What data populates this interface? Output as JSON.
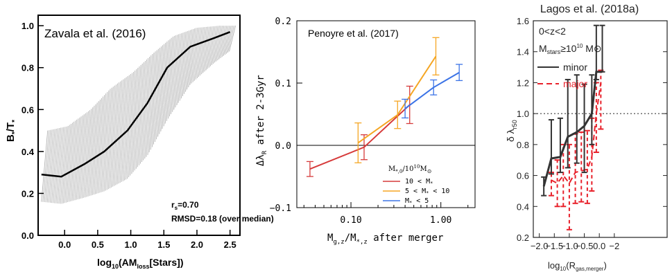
{
  "chart_data": [
    {
      "type": "line",
      "annotation": "Zavala et al. (2016)",
      "xlabel_main": "log",
      "xlabel_sub": "10",
      "xlabel_rest": "(AM",
      "xlabel_sub2": "loss",
      "xlabel_end": "[Stars])",
      "ylabel_main": "B",
      "ylabel_sub": "*",
      "ylabel_rest": "/T",
      "ylabel_sub2": "*",
      "stats": [
        "r",
        "=0.70",
        "RMSD=0.18 (over median)"
      ],
      "stats_sub": "s",
      "xlim": [
        -0.4,
        2.65
      ],
      "ylim": [
        0.0,
        1.05
      ],
      "xticks": [
        "0.0",
        "0.5",
        "1.0",
        "1.5",
        "2.0",
        "2.5"
      ],
      "yticks": [
        "0.0",
        "0.2",
        "0.4",
        "0.6",
        "0.8",
        "1.0"
      ],
      "xtick_values": [
        0.0,
        0.5,
        1.0,
        1.5,
        2.0,
        2.5
      ],
      "ytick_values": [
        0.0,
        0.2,
        0.4,
        0.6,
        0.8,
        1.0
      ],
      "series": [
        {
          "x": [
            -0.35,
            -0.05,
            0.3,
            0.6,
            0.95,
            1.25,
            1.55,
            1.9,
            2.25,
            2.5
          ],
          "median": [
            0.29,
            0.28,
            0.34,
            0.4,
            0.5,
            0.63,
            0.8,
            0.9,
            0.94,
            0.97
          ],
          "lower": [
            0.16,
            0.15,
            0.18,
            0.21,
            0.27,
            0.38,
            0.55,
            0.72,
            0.82,
            0.88
          ],
          "upper": [
            0.5,
            0.52,
            0.6,
            0.7,
            0.78,
            0.87,
            0.95,
            0.99,
            1.0,
            1.0
          ]
        }
      ]
    },
    {
      "type": "line",
      "annotation": "Penoyre et al. (2017)",
      "xlabel": "M",
      "ylabel": "Δλ",
      "ylabel_sub": "R",
      "ylabel_rest": " after 2-3Gyr",
      "xlabel_parts": [
        "M",
        "g,z",
        "/M",
        "*,z",
        " after merger"
      ],
      "xscale": "log",
      "xlim": [
        0.025,
        2.4
      ],
      "ylim": [
        -0.1,
        0.2
      ],
      "xticks": [
        "0.10",
        "1.00"
      ],
      "xtick_values": [
        0.1,
        1.0
      ],
      "yticks": [
        "−0.1",
        "0.0",
        "0.1",
        "0.2"
      ],
      "ytick_values": [
        -0.1,
        0.0,
        0.1,
        0.2
      ],
      "legend_title": "M*,0/10",
      "legend_title_sup": "10",
      "legend_title_end": "M⊙",
      "legend_title_parts": [
        "M",
        "*,0",
        "/10",
        "10",
        "M",
        "⊙"
      ],
      "series": [
        {
          "name": "10 < M* ",
          "label_parts": [
            "10 < M",
            "*"
          ],
          "color": "#d63a3a",
          "x": [
            0.035,
            0.14,
            0.45
          ],
          "y": [
            -0.038,
            -0.003,
            0.065
          ],
          "err": [
            0.012,
            0.02,
            0.03
          ]
        },
        {
          "name": "5 < M* < 10",
          "label_parts": [
            "5 < M",
            "*",
            " < 10"
          ],
          "color": "#f5a623",
          "x": [
            0.12,
            0.33,
            0.88
          ],
          "y": [
            0.004,
            0.049,
            0.143
          ],
          "err": [
            0.032,
            0.022,
            0.03
          ]
        },
        {
          "name": "M* < 5",
          "label_parts": [
            "M",
            "*",
            " < 5"
          ],
          "color": "#3b73e6",
          "x": [
            0.4,
            0.83,
            1.6
          ],
          "y": [
            0.059,
            0.093,
            0.117
          ],
          "err": [
            0.015,
            0.012,
            0.013
          ]
        }
      ]
    },
    {
      "type": "line",
      "title": "Lagos et al. (2018a)",
      "annotations": [
        "0<z<2",
        "M",
        "stars",
        "≥10",
        "10",
        " M⊙"
      ],
      "xlabel_parts": [
        "log",
        "10",
        "(R",
        "gas,merger",
        ")"
      ],
      "ylabel_parts": [
        "δ λ",
        "r50"
      ],
      "xlim": [
        2.25,
        -2.25
      ],
      "ylim": [
        0.2,
        1.6
      ],
      "xticks": [
        "−2.0",
        "−1.5",
        "−1.0",
        "−0.5",
        "0.0",
        "0.5",
        "1.0",
        "1.5",
        "2.0"
      ],
      "xtick_labels_display": [
        "−2.0",
        "−1.5",
        "−1.0",
        "−0.5",
        "0.0",
        "−2"
      ],
      "yticks": [
        "0.2",
        "0.4",
        "0.6",
        "0.8",
        "1.0",
        "1.2",
        "1.4",
        "1.6"
      ],
      "ytick_values": [
        0.2,
        0.4,
        0.6,
        0.8,
        1.0,
        1.2,
        1.4,
        1.6
      ],
      "hline": 1.0,
      "series": [
        {
          "name": "minor",
          "color": "#333333",
          "x": [
            -1.85,
            -1.6,
            -1.3,
            -1.05,
            -0.75,
            -0.5,
            -0.25,
            -0.1,
            0.1
          ],
          "y": [
            0.53,
            0.71,
            0.72,
            0.85,
            0.88,
            0.92,
            1.0,
            1.27,
            1.27
          ],
          "err_low": [
            0.06,
            0.1,
            0.1,
            0.2,
            0.2,
            0.3,
            0.2,
            0.05,
            0.0
          ],
          "err_high": [
            0.06,
            0.25,
            0.25,
            0.37,
            0.37,
            0.27,
            0.25,
            0.3,
            0.3
          ]
        },
        {
          "name": "major",
          "color": "#e8202a",
          "x": [
            -1.6,
            -1.4,
            -1.2,
            -1.0,
            -0.8,
            -0.6,
            -0.4,
            -0.25,
            -0.1,
            0.05
          ],
          "y": [
            0.57,
            0.55,
            0.6,
            0.55,
            0.62,
            0.63,
            0.64,
            0.72,
            1.0,
            1.2
          ],
          "err_low": [
            0.1,
            0.15,
            0.2,
            0.3,
            0.2,
            0.2,
            0.22,
            0.22,
            0.25,
            0.3
          ],
          "err_high": [
            0.05,
            0.15,
            0.2,
            0.25,
            0.25,
            0.25,
            0.25,
            0.25,
            0.2,
            0.08
          ]
        }
      ]
    }
  ]
}
